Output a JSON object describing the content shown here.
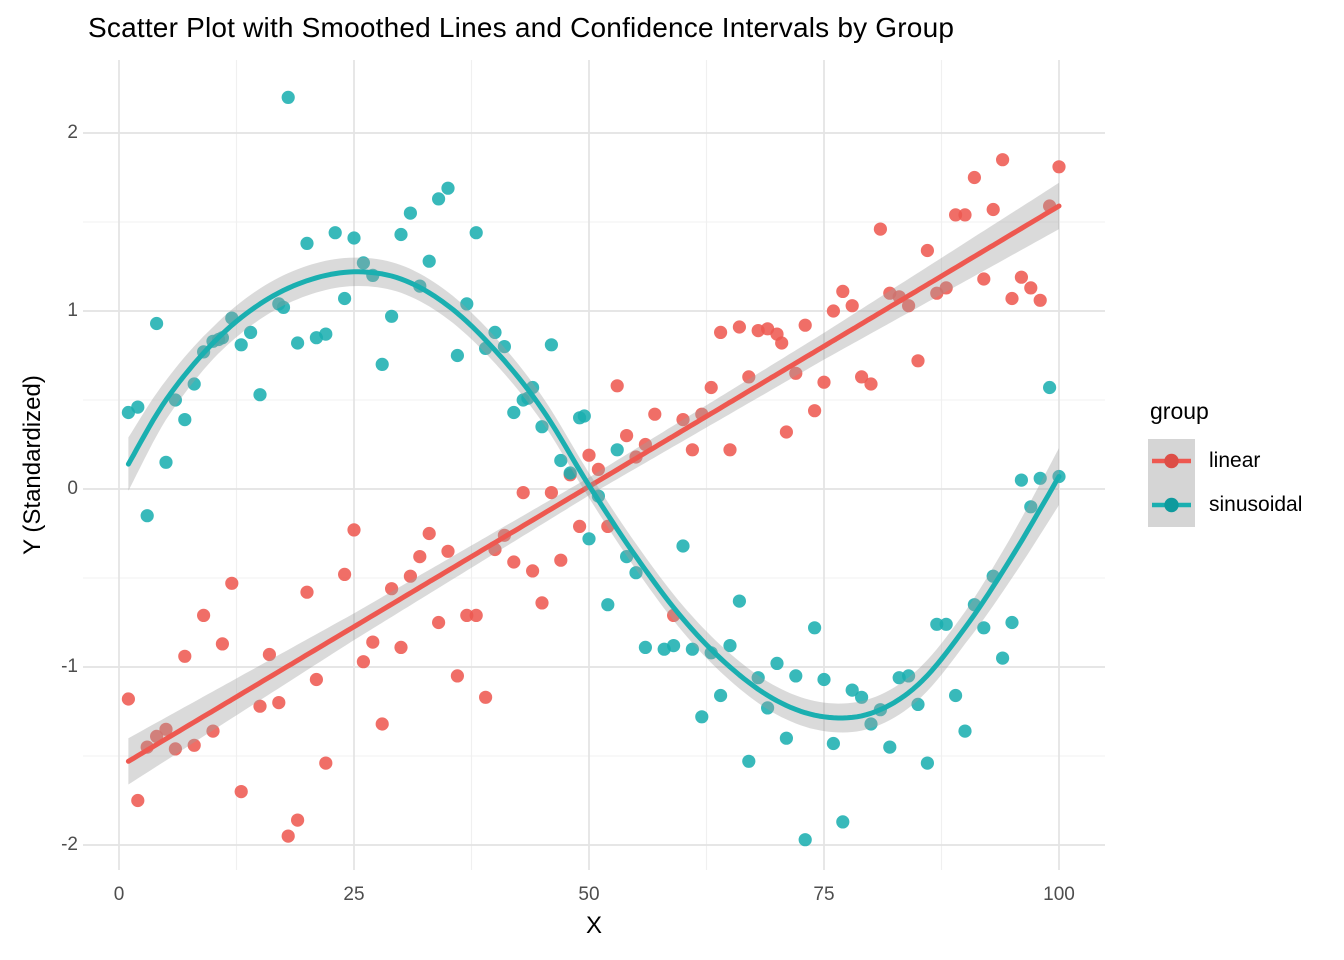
{
  "title": "Scatter Plot with Smoothed Lines and Confidence Intervals by Group",
  "axes": {
    "x_label": "X",
    "y_label": "Y (Standardized)"
  },
  "legend": {
    "title": "group",
    "items": [
      {
        "label": "linear",
        "color": "#ee5850"
      },
      {
        "label": "sinusoidal",
        "color": "#1aafb0"
      }
    ]
  },
  "colors": {
    "linear": "#ee5850",
    "sinusoidal": "#1aafb0",
    "ribbon": "#9e9e9e",
    "grid_major": "#e3e3e3",
    "grid_minor": "#f0f0f0",
    "tick_text": "#4d4d4d",
    "legend_key_bg": "#d5d5d5"
  },
  "chart_data": {
    "type": "scatter",
    "title": "Scatter Plot with Smoothed Lines and Confidence Intervals by Group",
    "xlabel": "X",
    "ylabel": "Y (Standardized)",
    "xlim": [
      -3.8,
      104.9
    ],
    "ylim": [
      -2.14,
      2.41
    ],
    "x_ticks": [
      0,
      25,
      50,
      75,
      100
    ],
    "y_ticks": [
      -2,
      -1,
      0,
      1,
      2
    ],
    "x_minor_ticks": [
      12.5,
      37.5,
      62.5,
      87.5
    ],
    "y_minor_ticks": [
      -1.5,
      -0.5,
      0.5,
      1.5
    ],
    "grid": "on",
    "legend_position": "right",
    "series": [
      {
        "name": "linear",
        "color": "#ee5850",
        "points": [
          [
            1,
            -1.18
          ],
          [
            2,
            -1.75
          ],
          [
            3,
            -1.45
          ],
          [
            4,
            -1.39
          ],
          [
            5,
            -1.35
          ],
          [
            6,
            -1.46
          ],
          [
            7,
            -0.94
          ],
          [
            8,
            -1.44
          ],
          [
            9,
            -0.71
          ],
          [
            10,
            -1.36
          ],
          [
            11,
            -0.87
          ],
          [
            12,
            -0.53
          ],
          [
            13,
            -1.7
          ],
          [
            15,
            -1.22
          ],
          [
            16,
            -0.93
          ],
          [
            17,
            -1.2
          ],
          [
            18,
            -1.95
          ],
          [
            19,
            -1.86
          ],
          [
            20,
            -0.58
          ],
          [
            21,
            -1.07
          ],
          [
            22,
            -1.54
          ],
          [
            24,
            -0.48
          ],
          [
            25,
            -0.23
          ],
          [
            26,
            -0.97
          ],
          [
            27,
            -0.86
          ],
          [
            28,
            -1.32
          ],
          [
            29,
            -0.56
          ],
          [
            30,
            -0.89
          ],
          [
            31,
            -0.49
          ],
          [
            32,
            -0.38
          ],
          [
            33,
            -0.25
          ],
          [
            34,
            -0.75
          ],
          [
            35,
            -0.35
          ],
          [
            36,
            -1.05
          ],
          [
            37,
            -0.71
          ],
          [
            38,
            -0.71
          ],
          [
            39,
            -1.17
          ],
          [
            40,
            -0.34
          ],
          [
            41,
            -0.26
          ],
          [
            42,
            -0.41
          ],
          [
            43,
            -0.02
          ],
          [
            44,
            -0.46
          ],
          [
            45,
            -0.64
          ],
          [
            46,
            -0.02
          ],
          [
            47,
            -0.4
          ],
          [
            48,
            0.08
          ],
          [
            49,
            -0.21
          ],
          [
            50,
            0.19
          ],
          [
            51,
            0.11
          ],
          [
            52,
            -0.21
          ],
          [
            53,
            0.58
          ],
          [
            54,
            0.3
          ],
          [
            55,
            0.18
          ],
          [
            56,
            0.25
          ],
          [
            57,
            0.42
          ],
          [
            59,
            -0.71
          ],
          [
            60,
            0.39
          ],
          [
            61,
            0.22
          ],
          [
            62,
            0.42
          ],
          [
            63,
            0.57
          ],
          [
            64,
            0.88
          ],
          [
            65,
            0.22
          ],
          [
            66,
            0.91
          ],
          [
            67,
            0.63
          ],
          [
            68,
            0.89
          ],
          [
            69,
            0.9
          ],
          [
            70,
            0.87
          ],
          [
            70.5,
            0.82
          ],
          [
            71,
            0.32
          ],
          [
            72,
            0.65
          ],
          [
            73,
            0.92
          ],
          [
            74,
            0.44
          ],
          [
            75,
            0.6
          ],
          [
            76,
            1.0
          ],
          [
            77,
            1.11
          ],
          [
            78,
            1.03
          ],
          [
            79,
            0.63
          ],
          [
            80,
            0.59
          ],
          [
            81,
            1.46
          ],
          [
            82,
            1.1
          ],
          [
            83,
            1.08
          ],
          [
            84,
            1.03
          ],
          [
            85,
            0.72
          ],
          [
            86,
            1.34
          ],
          [
            87,
            1.1
          ],
          [
            88,
            1.13
          ],
          [
            89,
            1.54
          ],
          [
            90,
            1.54
          ],
          [
            91,
            1.75
          ],
          [
            92,
            1.18
          ],
          [
            93,
            1.57
          ],
          [
            94,
            1.85
          ],
          [
            95,
            1.07
          ],
          [
            96,
            1.19
          ],
          [
            97,
            1.13
          ],
          [
            98,
            1.06
          ],
          [
            99,
            1.59
          ],
          [
            100,
            1.81
          ]
        ],
        "smooth": {
          "type": "linear",
          "line": [
            [
              1,
              -1.53
            ],
            [
              100,
              1.59
            ]
          ],
          "ci_width": [
            [
              1,
              0.13
            ],
            [
              25,
              0.075
            ],
            [
              50,
              0.05
            ],
            [
              75,
              0.075
            ],
            [
              100,
              0.13
            ]
          ]
        }
      },
      {
        "name": "sinusoidal",
        "color": "#1aafb0",
        "points": [
          [
            1,
            0.43
          ],
          [
            2,
            0.46
          ],
          [
            3,
            -0.15
          ],
          [
            4,
            0.93
          ],
          [
            5,
            0.15
          ],
          [
            6,
            0.5
          ],
          [
            7,
            0.39
          ],
          [
            8,
            0.59
          ],
          [
            9,
            0.77
          ],
          [
            10,
            0.83
          ],
          [
            10.6,
            0.84
          ],
          [
            11,
            0.85
          ],
          [
            12,
            0.96
          ],
          [
            13,
            0.81
          ],
          [
            14,
            0.88
          ],
          [
            15,
            0.53
          ],
          [
            17,
            1.04
          ],
          [
            17.5,
            1.02
          ],
          [
            18,
            2.2
          ],
          [
            19,
            0.82
          ],
          [
            20,
            1.38
          ],
          [
            21,
            0.85
          ],
          [
            22,
            0.87
          ],
          [
            23,
            1.44
          ],
          [
            24,
            1.07
          ],
          [
            25,
            1.41
          ],
          [
            26,
            1.27
          ],
          [
            27,
            1.2
          ],
          [
            28,
            0.7
          ],
          [
            29,
            0.97
          ],
          [
            30,
            1.43
          ],
          [
            31,
            1.55
          ],
          [
            32,
            1.14
          ],
          [
            33,
            1.28
          ],
          [
            34,
            1.63
          ],
          [
            35,
            1.69
          ],
          [
            36,
            0.75
          ],
          [
            37,
            1.04
          ],
          [
            38,
            1.44
          ],
          [
            39,
            0.79
          ],
          [
            40,
            0.88
          ],
          [
            41,
            0.8
          ],
          [
            42,
            0.43
          ],
          [
            43,
            0.5
          ],
          [
            43.5,
            0.51
          ],
          [
            44,
            0.57
          ],
          [
            45,
            0.35
          ],
          [
            46,
            0.81
          ],
          [
            47,
            0.16
          ],
          [
            48,
            0.09
          ],
          [
            49,
            0.4
          ],
          [
            49.5,
            0.41
          ],
          [
            50,
            -0.28
          ],
          [
            51,
            -0.04
          ],
          [
            52,
            -0.65
          ],
          [
            53,
            0.22
          ],
          [
            54,
            -0.38
          ],
          [
            55,
            -0.47
          ],
          [
            56,
            -0.89
          ],
          [
            58,
            -0.9
          ],
          [
            59,
            -0.88
          ],
          [
            60,
            -0.32
          ],
          [
            61,
            -0.9
          ],
          [
            62,
            -1.28
          ],
          [
            63,
            -0.92
          ],
          [
            64,
            -1.16
          ],
          [
            65,
            -0.88
          ],
          [
            66,
            -0.63
          ],
          [
            67,
            -1.53
          ],
          [
            68,
            -1.06
          ],
          [
            69,
            -1.23
          ],
          [
            70,
            -0.98
          ],
          [
            71,
            -1.4
          ],
          [
            72,
            -1.05
          ],
          [
            73,
            -1.97
          ],
          [
            74,
            -0.78
          ],
          [
            75,
            -1.07
          ],
          [
            76,
            -1.43
          ],
          [
            77,
            -1.87
          ],
          [
            78,
            -1.13
          ],
          [
            79,
            -1.17
          ],
          [
            80,
            -1.32
          ],
          [
            81,
            -1.24
          ],
          [
            82,
            -1.45
          ],
          [
            83,
            -1.06
          ],
          [
            84,
            -1.05
          ],
          [
            85,
            -1.21
          ],
          [
            86,
            -1.54
          ],
          [
            87,
            -0.76
          ],
          [
            88,
            -0.76
          ],
          [
            89,
            -1.16
          ],
          [
            90,
            -1.36
          ],
          [
            91,
            -0.65
          ],
          [
            92,
            -0.78
          ],
          [
            93,
            -0.49
          ],
          [
            94,
            -0.95
          ],
          [
            95,
            -0.75
          ],
          [
            96,
            0.05
          ],
          [
            97,
            -0.1
          ],
          [
            98,
            0.06
          ],
          [
            99,
            0.57
          ],
          [
            100,
            0.07
          ]
        ],
        "smooth": {
          "type": "loess",
          "line": [
            [
              1,
              0.14
            ],
            [
              5,
              0.5
            ],
            [
              10,
              0.82
            ],
            [
              15,
              1.04
            ],
            [
              20,
              1.17
            ],
            [
              25,
              1.22
            ],
            [
              30,
              1.18
            ],
            [
              35,
              1.03
            ],
            [
              40,
              0.78
            ],
            [
              45,
              0.45
            ],
            [
              50,
              0.02
            ],
            [
              55,
              -0.38
            ],
            [
              60,
              -0.73
            ],
            [
              65,
              -1.0
            ],
            [
              70,
              -1.19
            ],
            [
              75,
              -1.28
            ],
            [
              80,
              -1.26
            ],
            [
              85,
              -1.1
            ],
            [
              90,
              -0.78
            ],
            [
              95,
              -0.38
            ],
            [
              100,
              0.07
            ]
          ],
          "ci_width": [
            [
              1,
              0.15
            ],
            [
              5,
              0.11
            ],
            [
              10,
              0.09
            ],
            [
              25,
              0.08
            ],
            [
              50,
              0.07
            ],
            [
              75,
              0.08
            ],
            [
              90,
              0.09
            ],
            [
              95,
              0.12
            ],
            [
              100,
              0.16
            ]
          ]
        }
      }
    ]
  }
}
